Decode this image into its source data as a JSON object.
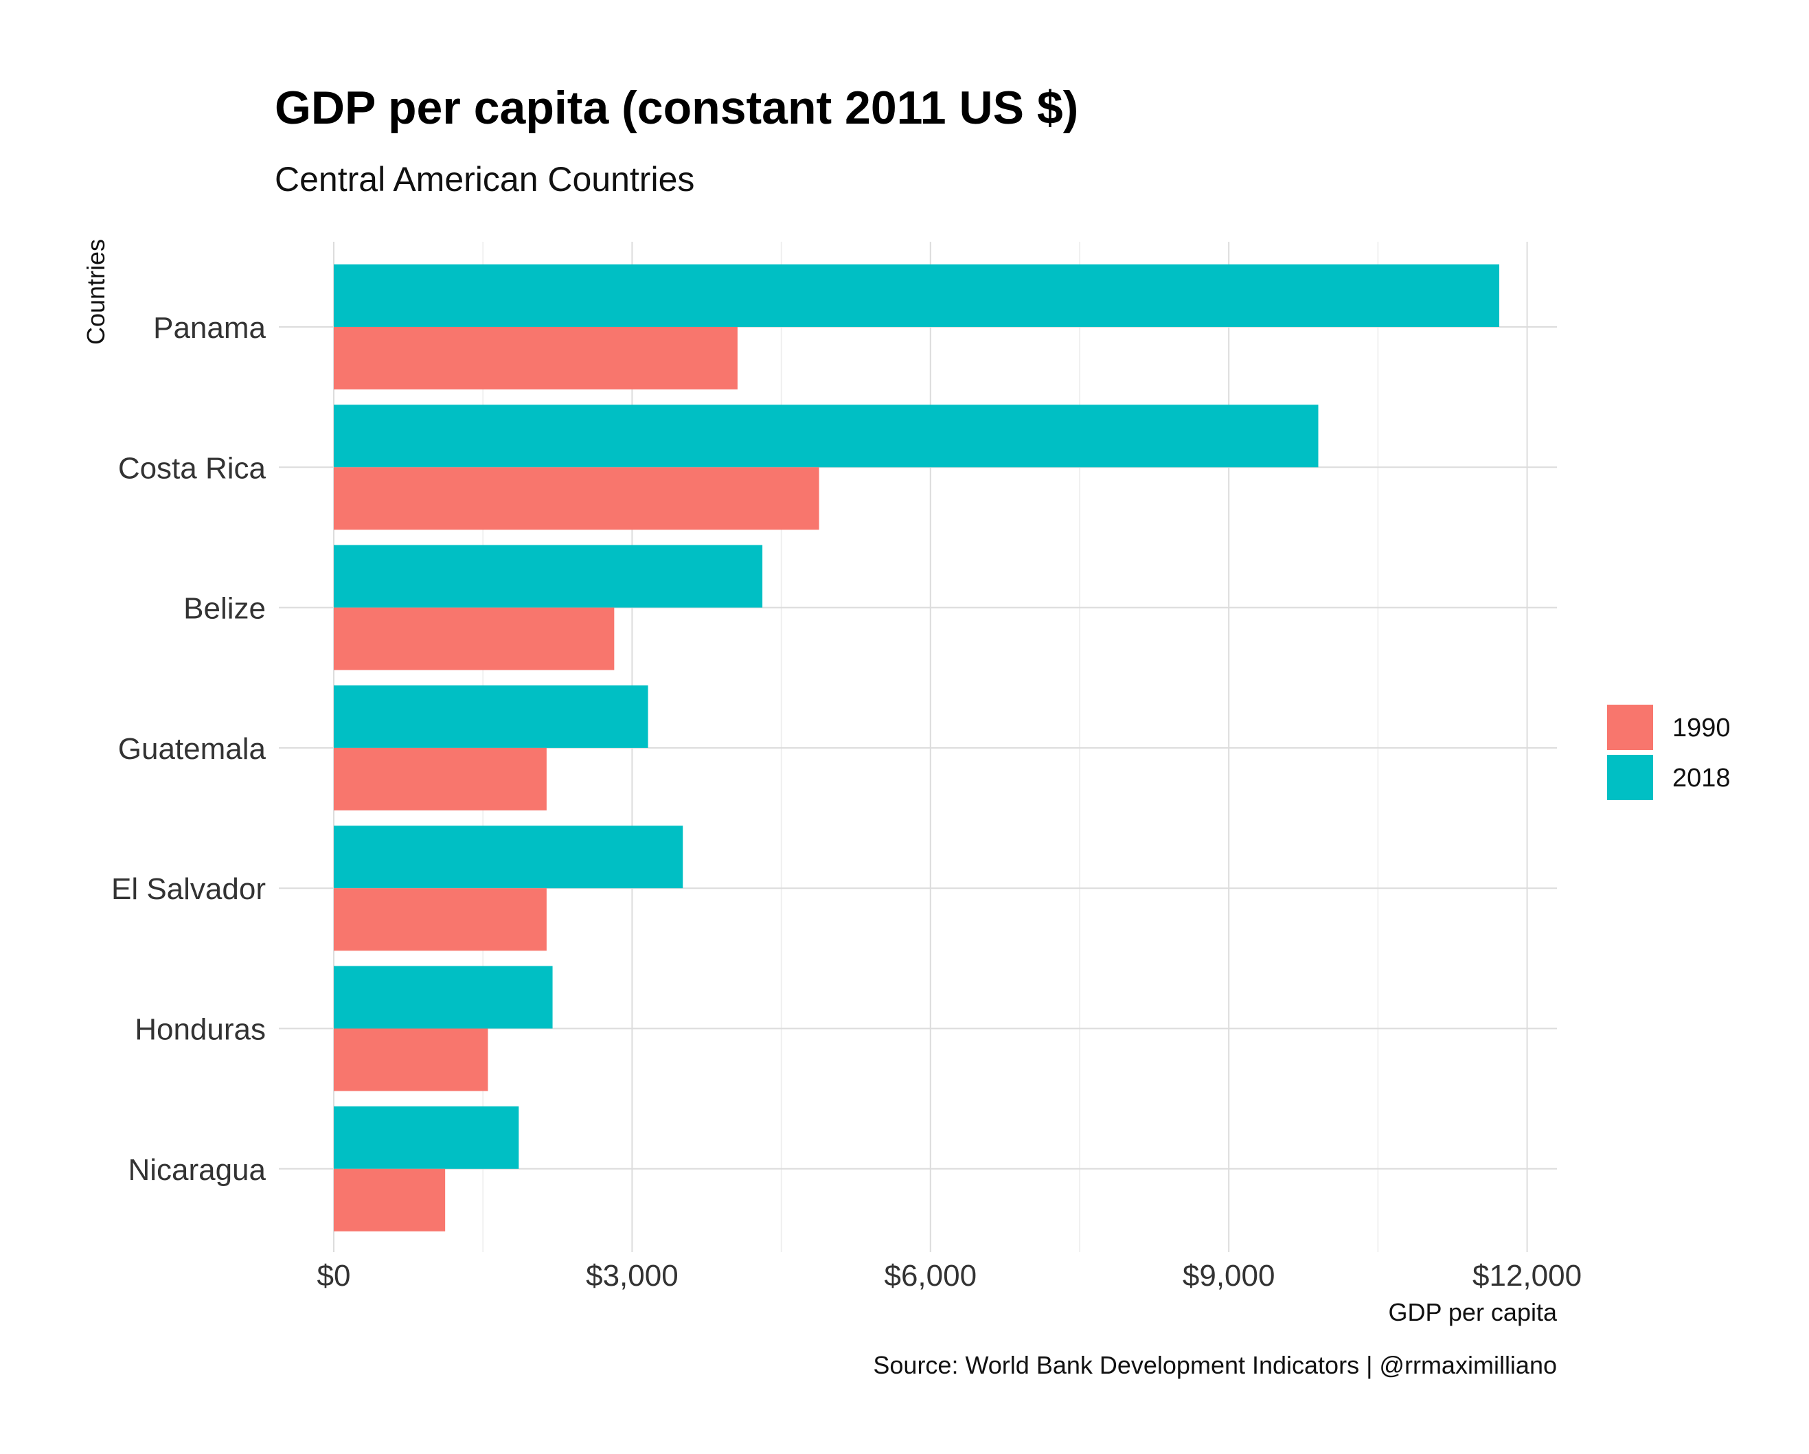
{
  "chart_data": {
    "type": "bar",
    "orientation": "horizontal",
    "title": "GDP per capita (constant 2011 US $)",
    "subtitle": "Central American Countries",
    "xlabel": "GDP per capita",
    "ylabel": "Countries",
    "caption": "Source: World Bank Development Indicators | @rrmaximilliano",
    "categories": [
      "Panama",
      "Costa Rica",
      "Belize",
      "Guatemala",
      "El Salvador",
      "Honduras",
      "Nicaragua"
    ],
    "series": [
      {
        "name": "1990",
        "color": "#F8766D",
        "values": [
          4060,
          4880,
          2820,
          2140,
          2140,
          1550,
          1120
        ]
      },
      {
        "name": "2018",
        "color": "#00BFC4",
        "values": [
          11720,
          9900,
          4310,
          3160,
          3510,
          2200,
          1860
        ]
      }
    ],
    "xlim": [
      0,
      12300
    ],
    "xticks": [
      0,
      3000,
      6000,
      9000,
      12000
    ],
    "xtick_labels": [
      "$0",
      "$3,000",
      "$6,000",
      "$9,000",
      "$12,000"
    ],
    "grid": true,
    "legend_position": "right"
  }
}
